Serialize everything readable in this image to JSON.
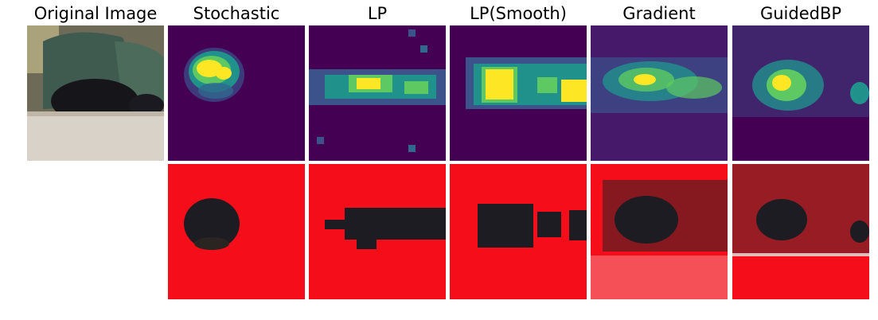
{
  "columns": [
    {
      "key": "original",
      "title": "Original Image"
    },
    {
      "key": "stochastic",
      "title": "Stochastic"
    },
    {
      "key": "lp",
      "title": "LP"
    },
    {
      "key": "lp_smooth",
      "title": "LP(Smooth)"
    },
    {
      "key": "gradient",
      "title": "Gradient"
    },
    {
      "key": "guidedbp",
      "title": "GuidedBP"
    }
  ],
  "colors": {
    "heatmap_background": "#440154",
    "heatmap_low": "#3b528b",
    "heatmap_mid": "#21918c",
    "heatmap_high": "#5ec962",
    "heatmap_peak": "#fde725",
    "mask_red": "#f50e1a",
    "dog_black": "#1c1c22"
  },
  "rows": [
    {
      "name": "saliency-heatmaps"
    },
    {
      "name": "masked-images"
    }
  ]
}
